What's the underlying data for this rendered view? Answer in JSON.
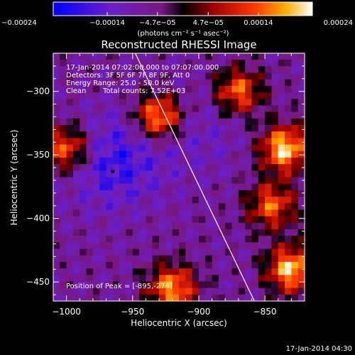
{
  "chart_data": {
    "type": "heatmap",
    "title": "Reconstructed RHESSI Image",
    "xlabel": "Heliocentric X (arcsec)",
    "ylabel": "Heliocentric Y (arcsec)",
    "xlim": [
      -1010,
      -820
    ],
    "ylim": [
      -465,
      -270
    ],
    "x_ticks": [
      -1000,
      -950,
      -900,
      -850
    ],
    "y_ticks": [
      -450,
      -400,
      -350,
      -300
    ],
    "x_tick_labels": [
      "−1000",
      "−950",
      "−900",
      "−850"
    ],
    "y_tick_labels": [
      "−450",
      "−400",
      "−350",
      "−300"
    ],
    "colorbar": {
      "min": -0.00024,
      "max": 0.00024,
      "ticks": [
        -0.00024,
        -0.00014,
        -4.7e-05,
        4.7e-05,
        0.00014,
        0.00024
      ],
      "tick_labels": [
        "−0.00024",
        "−0.00014",
        "−4.7e−05",
        "4.7e−05",
        "0.00014",
        "0.00024"
      ],
      "unit_label": "(photons cm⁻² s⁻¹ asec⁻²)"
    },
    "annotations": {
      "time_range": "17-Jan-2014 07:02:00.000 to 07:07:00.000",
      "detectors": "Detectors: 3F 5F 6F 7F 8F 9F, Att 0",
      "energy_range": "Energy Range: 25.0 - 50.0 keV",
      "method": "Clean",
      "total_counts": "Total counts: 7.52E+03",
      "peak": "Position of Peak = [-895,-274]"
    },
    "peak_position": [
      -895,
      -274
    ],
    "limb_line": [
      [
        -948,
        -270
      ],
      [
        -858,
        -465
      ]
    ],
    "blue_regions": [
      {
        "x": -965,
        "y": -355,
        "level": -0.00018
      },
      {
        "x": -902,
        "y": -330,
        "level": -0.00012
      }
    ],
    "red_regions": [
      {
        "x": -930,
        "y": -320,
        "level": 0.0002
      },
      {
        "x": -870,
        "y": -300,
        "level": 0.00015
      },
      {
        "x": -835,
        "y": -345,
        "level": 0.00022
      },
      {
        "x": -830,
        "y": -440,
        "level": 0.00021
      },
      {
        "x": -1000,
        "y": -345,
        "level": 0.00016
      },
      {
        "x": -920,
        "y": -455,
        "level": 0.00018
      },
      {
        "x": -845,
        "y": -390,
        "level": 0.00014
      }
    ]
  },
  "footer": {
    "timestamp": "17-Jan-2014 04:30"
  }
}
